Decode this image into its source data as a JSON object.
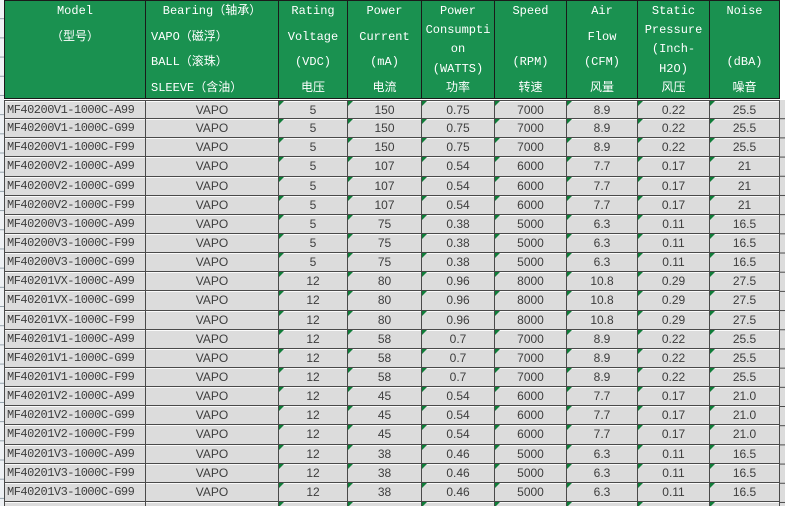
{
  "table": {
    "title_semantics": "fan-specification-sheet",
    "columns": [
      {
        "id": "model",
        "lines": [
          "Model",
          "（型号）",
          "",
          ""
        ]
      },
      {
        "id": "bearing",
        "lines": [
          "Bearing（轴承）",
          "VAPO（磁浮）",
          "BALL（滚珠）",
          "SLEEVE（含油）"
        ]
      },
      {
        "id": "voltage",
        "lines": [
          "Rating",
          "Voltage",
          "(VDC)",
          "电压"
        ]
      },
      {
        "id": "current",
        "lines": [
          "Power",
          "Current",
          "(mA)",
          "电流"
        ]
      },
      {
        "id": "consumption",
        "lines": [
          "Power",
          "Consumpti",
          "on",
          "(WATTS)",
          "功率"
        ]
      },
      {
        "id": "speed",
        "lines": [
          "Speed",
          "",
          "(RPM)",
          "转速"
        ]
      },
      {
        "id": "airflow",
        "lines": [
          "Air",
          "Flow",
          "(CFM)",
          "风量"
        ]
      },
      {
        "id": "pressure",
        "lines": [
          "Static",
          "Pressure",
          "(Inch-",
          "H2O)",
          "风压"
        ]
      },
      {
        "id": "noise",
        "lines": [
          "Noise",
          "",
          "(dBA)",
          "噪音"
        ]
      }
    ],
    "rows": [
      [
        "MF40200V1-1000C-A99",
        "VAPO",
        "5",
        "150",
        "0.75",
        "7000",
        "8.9",
        "0.22",
        "25.5"
      ],
      [
        "MF40200V1-1000C-G99",
        "VAPO",
        "5",
        "150",
        "0.75",
        "7000",
        "8.9",
        "0.22",
        "25.5"
      ],
      [
        "MF40200V1-1000C-F99",
        "VAPO",
        "5",
        "150",
        "0.75",
        "7000",
        "8.9",
        "0.22",
        "25.5"
      ],
      [
        "MF40200V2-1000C-A99",
        "VAPO",
        "5",
        "107",
        "0.54",
        "6000",
        "7.7",
        "0.17",
        "21"
      ],
      [
        "MF40200V2-1000C-G99",
        "VAPO",
        "5",
        "107",
        "0.54",
        "6000",
        "7.7",
        "0.17",
        "21"
      ],
      [
        "MF40200V2-1000C-F99",
        "VAPO",
        "5",
        "107",
        "0.54",
        "6000",
        "7.7",
        "0.17",
        "21"
      ],
      [
        "MF40200V3-1000C-A99",
        "VAPO",
        "5",
        "75",
        "0.38",
        "5000",
        "6.3",
        "0.11",
        "16.5"
      ],
      [
        "MF40200V3-1000C-F99",
        "VAPO",
        "5",
        "75",
        "0.38",
        "5000",
        "6.3",
        "0.11",
        "16.5"
      ],
      [
        "MF40200V3-1000C-G99",
        "VAPO",
        "5",
        "75",
        "0.38",
        "5000",
        "6.3",
        "0.11",
        "16.5"
      ],
      [
        "MF40201VX-1000C-A99",
        "VAPO",
        "12",
        "80",
        "0.96",
        "8000",
        "10.8",
        "0.29",
        "27.5"
      ],
      [
        "MF40201VX-1000C-G99",
        "VAPO",
        "12",
        "80",
        "0.96",
        "8000",
        "10.8",
        "0.29",
        "27.5"
      ],
      [
        "MF40201VX-1000C-F99",
        "VAPO",
        "12",
        "80",
        "0.96",
        "8000",
        "10.8",
        "0.29",
        "27.5"
      ],
      [
        "MF40201V1-1000C-A99",
        "VAPO",
        "12",
        "58",
        "0.7",
        "7000",
        "8.9",
        "0.22",
        "25.5"
      ],
      [
        "MF40201V1-1000C-G99",
        "VAPO",
        "12",
        "58",
        "0.7",
        "7000",
        "8.9",
        "0.22",
        "25.5"
      ],
      [
        "MF40201V1-1000C-F99",
        "VAPO",
        "12",
        "58",
        "0.7",
        "7000",
        "8.9",
        "0.22",
        "25.5"
      ],
      [
        "MF40201V2-1000C-A99",
        "VAPO",
        "12",
        "45",
        "0.54",
        "6000",
        "7.7",
        "0.17",
        "21.0"
      ],
      [
        "MF40201V2-1000C-G99",
        "VAPO",
        "12",
        "45",
        "0.54",
        "6000",
        "7.7",
        "0.17",
        "21.0"
      ],
      [
        "MF40201V2-1000C-F99",
        "VAPO",
        "12",
        "45",
        "0.54",
        "6000",
        "7.7",
        "0.17",
        "21.0"
      ],
      [
        "MF40201V3-1000C-A99",
        "VAPO",
        "12",
        "38",
        "0.46",
        "5000",
        "6.3",
        "0.11",
        "16.5"
      ],
      [
        "MF40201V3-1000C-F99",
        "VAPO",
        "12",
        "38",
        "0.46",
        "5000",
        "6.3",
        "0.11",
        "16.5"
      ],
      [
        "MF40201V3-1000C-G99",
        "VAPO",
        "12",
        "38",
        "0.46",
        "5000",
        "6.3",
        "0.11",
        "16.5"
      ]
    ],
    "partial_row_visible": true,
    "colors": {
      "header_bg": "#1a9150",
      "header_text": "#ffffff",
      "cell_bg": "#dcdcdc",
      "cell_text": "#3d3d3d",
      "error_triangle": "#0f7c38"
    }
  }
}
